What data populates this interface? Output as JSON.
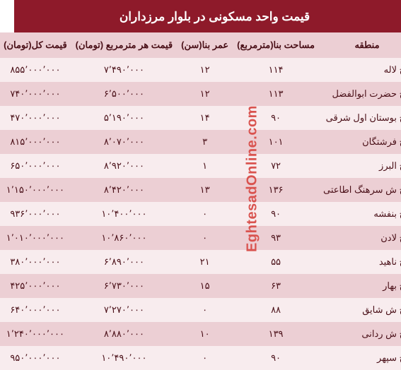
{
  "title": "قیمت واحد مسکونی در بلوار مرزداران",
  "colors": {
    "title_bg": "#8e1a2a",
    "title_text": "#ffffff",
    "header_bg": "#eccfd4",
    "header_text": "#4a1018",
    "row_odd_bg": "#f8ecee",
    "row_even_bg": "#eccfd4",
    "row_text": "#4a1018",
    "watermark": "#d9534f"
  },
  "columns": [
    {
      "key": "region",
      "label": "منطقه"
    },
    {
      "key": "area",
      "label": "مساحت بنا(مترمربع)"
    },
    {
      "key": "age",
      "label": "عمر بنا(سن)"
    },
    {
      "key": "ppm",
      "label": "قیمت هر مترمربع (تومان)"
    },
    {
      "key": "total",
      "label": "قیمت کل(تومان)"
    }
  ],
  "rows": [
    {
      "region": "خ لاله",
      "area": "۱۱۴",
      "age": "۱۲",
      "ppm": "۷٬۴۹۰٬۰۰۰",
      "total": "۸۵۵٬۰۰۰٬۰۰۰"
    },
    {
      "region": "خ حضرت ابوالفضل",
      "area": "۱۱۳",
      "age": "۱۲",
      "ppm": "۶٬۵۰۰٬۰۰۰",
      "total": "۷۴۰٬۰۰۰٬۰۰۰"
    },
    {
      "region": "خ بوستان اول شرقی",
      "area": "۹۰",
      "age": "۱۴",
      "ppm": "۵٬۱۹۰٬۰۰۰",
      "total": "۴۷۰٬۰۰۰٬۰۰۰"
    },
    {
      "region": "خ فرشتگان",
      "area": "۱۰۱",
      "age": "۳",
      "ppm": "۸٬۰۷۰٬۰۰۰",
      "total": "۸۱۵٬۰۰۰٬۰۰۰"
    },
    {
      "region": "خ البرز",
      "area": "۷۲",
      "age": "۱",
      "ppm": "۸٬۹۲۰٬۰۰۰",
      "total": "۶۵۰٬۰۰۰٬۰۰۰"
    },
    {
      "region": "خ ش سرهنگ اطاعتی",
      "area": "۱۳۶",
      "age": "۱۳",
      "ppm": "۸٬۴۲۰٬۰۰۰",
      "total": "۱٬۱۵۰٬۰۰۰٬۰۰۰"
    },
    {
      "region": "خ بنفشه",
      "area": "۹۰",
      "age": "۰",
      "ppm": "۱۰٬۴۰۰٬۰۰۰",
      "total": "۹۳۶٬۰۰۰٬۰۰۰"
    },
    {
      "region": "خ لادن",
      "area": "۹۳",
      "age": "۰",
      "ppm": "۱۰٬۸۶۰٬۰۰۰",
      "total": "۱٬۰۱۰٬۰۰۰٬۰۰۰"
    },
    {
      "region": "خ ناهید",
      "area": "۵۵",
      "age": "۲۱",
      "ppm": "۶٬۸۹۰٬۰۰۰",
      "total": "۳۸۰٬۰۰۰٬۰۰۰"
    },
    {
      "region": "خ بهار",
      "area": "۶۳",
      "age": "۱۵",
      "ppm": "۶٬۷۳۰٬۰۰۰",
      "total": "۴۲۵٬۰۰۰٬۰۰۰"
    },
    {
      "region": "خ ش شایق",
      "area": "۸۸",
      "age": "۰",
      "ppm": "۷٬۲۷۰٬۰۰۰",
      "total": "۶۴۰٬۰۰۰٬۰۰۰"
    },
    {
      "region": "خ ش ردانی",
      "area": "۱۳۹",
      "age": "۱۰",
      "ppm": "۸٬۸۸۰٬۰۰۰",
      "total": "۱٬۲۴۰٬۰۰۰٬۰۰۰"
    },
    {
      "region": "خ سپهر",
      "area": "۹۰",
      "age": "۰",
      "ppm": "۱۰٬۴۹۰٬۰۰۰",
      "total": "۹۵۰٬۰۰۰٬۰۰۰"
    }
  ],
  "watermark": "EghtesadOnline.com"
}
